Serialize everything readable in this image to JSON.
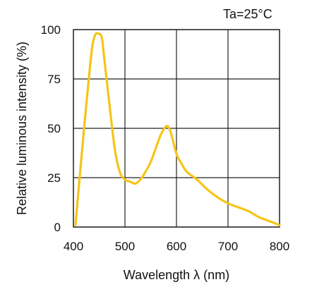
{
  "chart_data": {
    "type": "line",
    "annotation": "Ta=25°C",
    "xlabel": "Wavelength  λ (nm)",
    "ylabel": "Relative luminous intensity  (%)",
    "xlim": [
      400,
      800
    ],
    "ylim": [
      0,
      100
    ],
    "x_ticks": [
      "400",
      "500",
      "600",
      "700",
      "800"
    ],
    "y_ticks": [
      "0",
      "25",
      "50",
      "75",
      "100"
    ],
    "grid": true,
    "series": [
      {
        "color": "#f5c518",
        "x": [
          404,
          420,
          435,
          442,
          448,
          455,
          460,
          470,
          480,
          490,
          500,
          510,
          520,
          530,
          540,
          550,
          560,
          570,
          580,
          586,
          592,
          600,
          610,
          620,
          640,
          660,
          680,
          700,
          720,
          740,
          760,
          780,
          800
        ],
        "y": [
          1,
          48,
          88,
          97,
          98,
          96,
          85,
          62,
          40,
          28,
          24,
          23,
          22,
          24,
          28,
          33,
          40,
          47,
          51,
          50,
          45,
          37,
          32,
          28,
          24,
          19,
          15,
          12,
          10,
          8,
          5,
          3,
          1
        ]
      }
    ]
  }
}
